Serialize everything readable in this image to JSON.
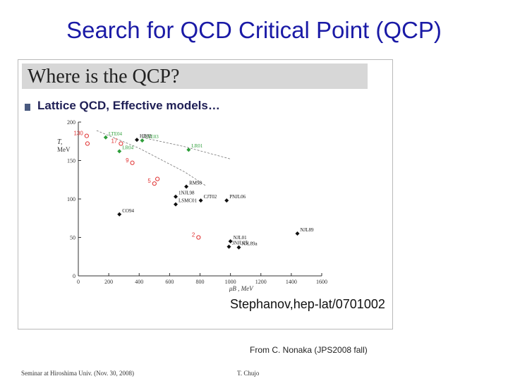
{
  "slide": {
    "title": "Search for QCD Critical Point (QCP)",
    "caption": "From C. Nonaka (JPS2008 fall)",
    "footer_left": "Seminar at Hiroshima Univ. (Nov. 30, 2008)",
    "footer_right": "T. Chujo"
  },
  "figure": {
    "header": "Where is the QCP?",
    "bullet": "Lattice QCD, Effective models…",
    "citation": "Stephanov,hep-lat/0701002",
    "colors": {
      "header_band": "#d7d7d7",
      "lattice": "#2e9e3a",
      "model": "#111111",
      "red": "#e03030",
      "title": "#1a1aa6"
    }
  },
  "chart_data": {
    "type": "scatter",
    "xlabel": "μB , MeV",
    "ylabel_top": "T,",
    "ylabel_bottom": "MeV",
    "xlim": [
      0,
      1600
    ],
    "ylim": [
      0,
      200
    ],
    "x_ticks": [
      "0",
      "200",
      "400",
      "600",
      "800",
      "1000",
      "1200",
      "1400",
      "1600"
    ],
    "y_ticks": [
      "0",
      "50",
      "100",
      "150",
      "200"
    ],
    "series": [
      {
        "group": "lattice",
        "marker": "diamond",
        "color": "#2e9e3a",
        "points": [
          {
            "label": "LTE04",
            "x": 180,
            "y": 180
          },
          {
            "label": "LTE03",
            "x": 420,
            "y": 176
          },
          {
            "label": "LR01",
            "x": 725,
            "y": 164
          },
          {
            "label": "LR04",
            "x": 270,
            "y": 162
          }
        ]
      },
      {
        "group": "models",
        "marker": "diamond",
        "color": "#111111",
        "points": [
          {
            "label": "HB02",
            "x": 385,
            "y": 177
          },
          {
            "label": "NJL89",
            "x": 1440,
            "y": 55
          },
          {
            "label": "CO94",
            "x": 270,
            "y": 80
          },
          {
            "label": "RM98",
            "x": 710,
            "y": 116
          },
          {
            "label": "1NJL98",
            "x": 640,
            "y": 103
          },
          {
            "label": "LSMC01",
            "x": 640,
            "y": 93
          },
          {
            "label": "CJT02",
            "x": 805,
            "y": 98
          },
          {
            "label": "PNJL06",
            "x": 975,
            "y": 98
          },
          {
            "label": "NJL01",
            "x": 1000,
            "y": 45
          },
          {
            "label": "3NJL05",
            "x": 990,
            "y": 38
          },
          {
            "label": "NJL89a",
            "x": 1055,
            "y": 37
          }
        ]
      },
      {
        "group": "lattice-estimates",
        "marker": "circle",
        "color": "#e03030",
        "points": [
          {
            "label": "130",
            "x": 55,
            "y": 182
          },
          {
            "label": "",
            "x": 60,
            "y": 172
          },
          {
            "label": "17",
            "x": 280,
            "y": 172
          },
          {
            "label": "9",
            "x": 355,
            "y": 147
          },
          {
            "label": "5",
            "x": 500,
            "y": 120
          },
          {
            "label": "",
            "x": 520,
            "y": 126
          },
          {
            "label": "2",
            "x": 790,
            "y": 50
          }
        ]
      }
    ],
    "lines": [
      {
        "style": "dashed",
        "points": [
          [
            120,
            189
          ],
          [
            400,
            166
          ],
          [
            700,
            135
          ],
          [
            840,
            117
          ]
        ]
      },
      {
        "style": "dashed",
        "points": [
          [
            420,
            180
          ],
          [
            700,
            168
          ],
          [
            1000,
            152
          ]
        ]
      }
    ]
  }
}
